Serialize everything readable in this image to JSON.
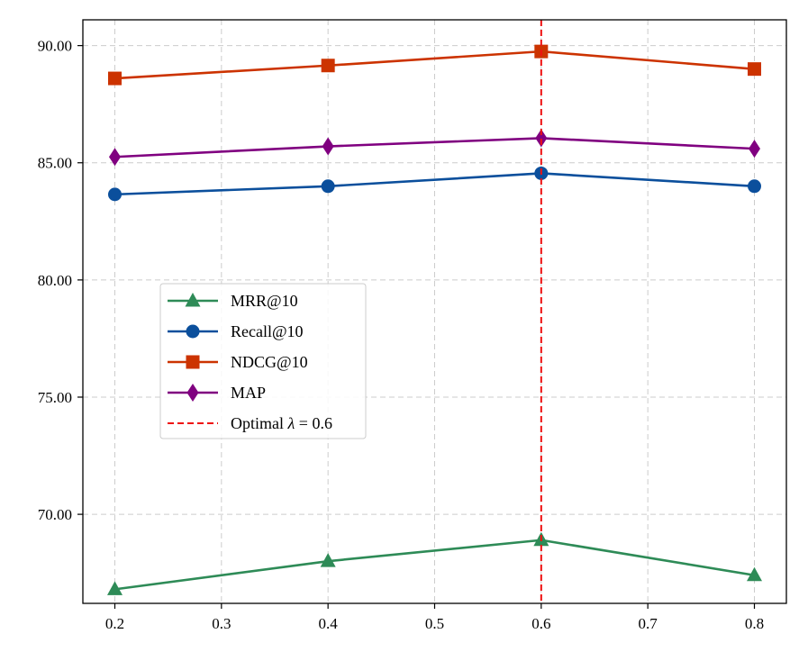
{
  "chart_data": {
    "type": "line",
    "x": [
      0.2,
      0.4,
      0.6,
      0.8
    ],
    "xlim": [
      0.17,
      0.83
    ],
    "ylim": [
      66.2,
      91.1
    ],
    "xticks": [
      0.2,
      0.3,
      0.4,
      0.5,
      0.6,
      0.7,
      0.8
    ],
    "xtick_labels": [
      "0.2",
      "0.3",
      "0.4",
      "0.5",
      "0.6",
      "0.7",
      "0.8"
    ],
    "yticks": [
      70,
      75,
      80,
      85,
      90
    ],
    "ytick_labels": [
      "70.00",
      "75.00",
      "80.00",
      "85.00",
      "90.00"
    ],
    "grid": true,
    "legend_position": "center-left",
    "series": [
      {
        "name": "MRR@10",
        "values": [
          66.8,
          68.0,
          68.9,
          67.4
        ],
        "color": "#2e8b57",
        "marker": "triangle"
      },
      {
        "name": "Recall@10",
        "values": [
          83.65,
          84.0,
          84.55,
          84.0
        ],
        "color": "#0b4f9c",
        "marker": "circle"
      },
      {
        "name": "NDCG@10",
        "values": [
          88.6,
          89.15,
          89.75,
          89.0
        ],
        "color": "#cc3300",
        "marker": "square"
      },
      {
        "name": "MAP",
        "values": [
          85.25,
          85.7,
          86.05,
          85.6
        ],
        "color": "#800080",
        "marker": "diamond"
      }
    ],
    "reference_line": {
      "x": 0.6,
      "label_prefix": "Optimal ",
      "symbol": "λ",
      "label_suffix": " = 0.6",
      "color": "#ee1111"
    }
  }
}
